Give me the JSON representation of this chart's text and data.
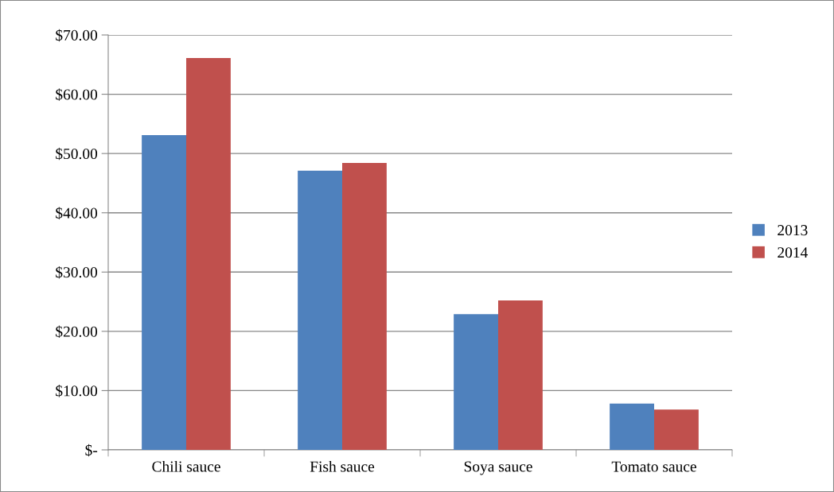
{
  "chart_data": {
    "type": "bar",
    "categories": [
      "Chili sauce",
      "Fish sauce",
      "Soya sauce",
      "Tomato sauce"
    ],
    "series": [
      {
        "name": "2013",
        "color": "#4f81bd",
        "values": [
          53.1,
          47.1,
          22.9,
          7.8
        ]
      },
      {
        "name": "2014",
        "color": "#c0504d",
        "values": [
          66.1,
          48.4,
          25.2,
          6.8
        ]
      }
    ],
    "ylim": [
      0,
      70
    ],
    "yticks": [
      {
        "value": 0,
        "label": "$-"
      },
      {
        "value": 10,
        "label": "$10.00"
      },
      {
        "value": 20,
        "label": "$20.00"
      },
      {
        "value": 30,
        "label": "$30.00"
      },
      {
        "value": 40,
        "label": "$40.00"
      },
      {
        "value": 50,
        "label": "$50.00"
      },
      {
        "value": 60,
        "label": "$60.00"
      },
      {
        "value": 70,
        "label": "$70.00"
      }
    ],
    "grid": "y",
    "legend": "right"
  }
}
